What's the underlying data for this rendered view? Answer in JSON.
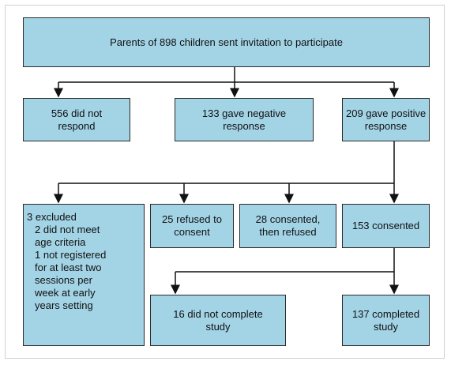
{
  "nodes": [
    {
      "lines": [
        "Parents of 898 children sent invitation to participate"
      ]
    },
    {
      "lines": [
        "556 did not",
        "respond"
      ]
    },
    {
      "lines": [
        "133 gave negative",
        "response"
      ]
    },
    {
      "lines": [
        "209 gave positive",
        "response"
      ]
    },
    {
      "lines": [
        "3 excluded",
        "2 did not meet",
        "age criteria",
        "1 not registered",
        "for at least two",
        "sessions per",
        "week at early",
        "years setting"
      ]
    },
    {
      "lines": [
        "25 refused to",
        "consent"
      ]
    },
    {
      "lines": [
        "28 consented,",
        "then refused"
      ]
    },
    {
      "lines": [
        "153 consented"
      ]
    },
    {
      "lines": [
        "16 did not complete",
        "study"
      ]
    },
    {
      "lines": [
        "137 completed",
        "study"
      ]
    }
  ]
}
